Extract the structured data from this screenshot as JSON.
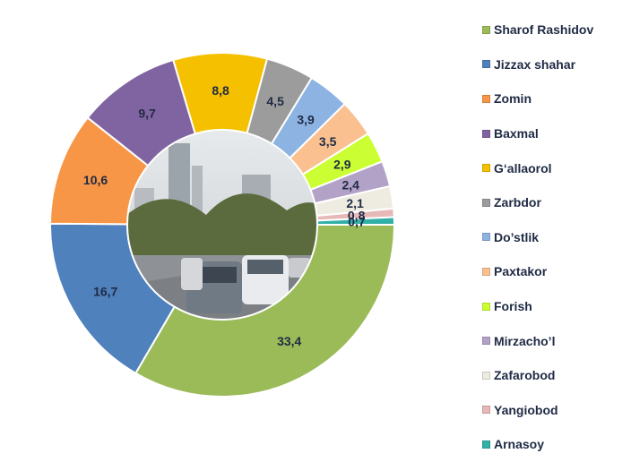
{
  "chart_data": {
    "type": "pie",
    "style": "donut",
    "categories": [
      "Sharof Rashidov",
      "Jizzax shahar",
      "Zomin",
      "Baxmal",
      "G‘allaorol",
      "Zarbdor",
      "Do’stlik",
      "Paxtakor",
      "Forish",
      "Mirzacho’l",
      "Zafarobod",
      "Yangiobod",
      "Arnasoy"
    ],
    "values": [
      33.4,
      16.7,
      10.6,
      9.7,
      8.8,
      4.5,
      3.9,
      3.5,
      2.9,
      2.4,
      2.1,
      0.8,
      0.7
    ],
    "value_labels": [
      "33,4",
      "16,7",
      "10,6",
      "9,7",
      "8,8",
      "4,5",
      "3,9",
      "3,5",
      "2,9",
      "2,4",
      "2,1",
      "0,8",
      "0,7"
    ],
    "colors": [
      "#9bbb59",
      "#4f81bd",
      "#f79646",
      "#8064a2",
      "#f5c000",
      "#9c9c9c",
      "#8db3e2",
      "#fac090",
      "#ccff33",
      "#b3a2c7",
      "#eeece1",
      "#e6b9b8",
      "#31b0a8"
    ],
    "legend_position": "right",
    "center_image": "city-street-photo"
  }
}
